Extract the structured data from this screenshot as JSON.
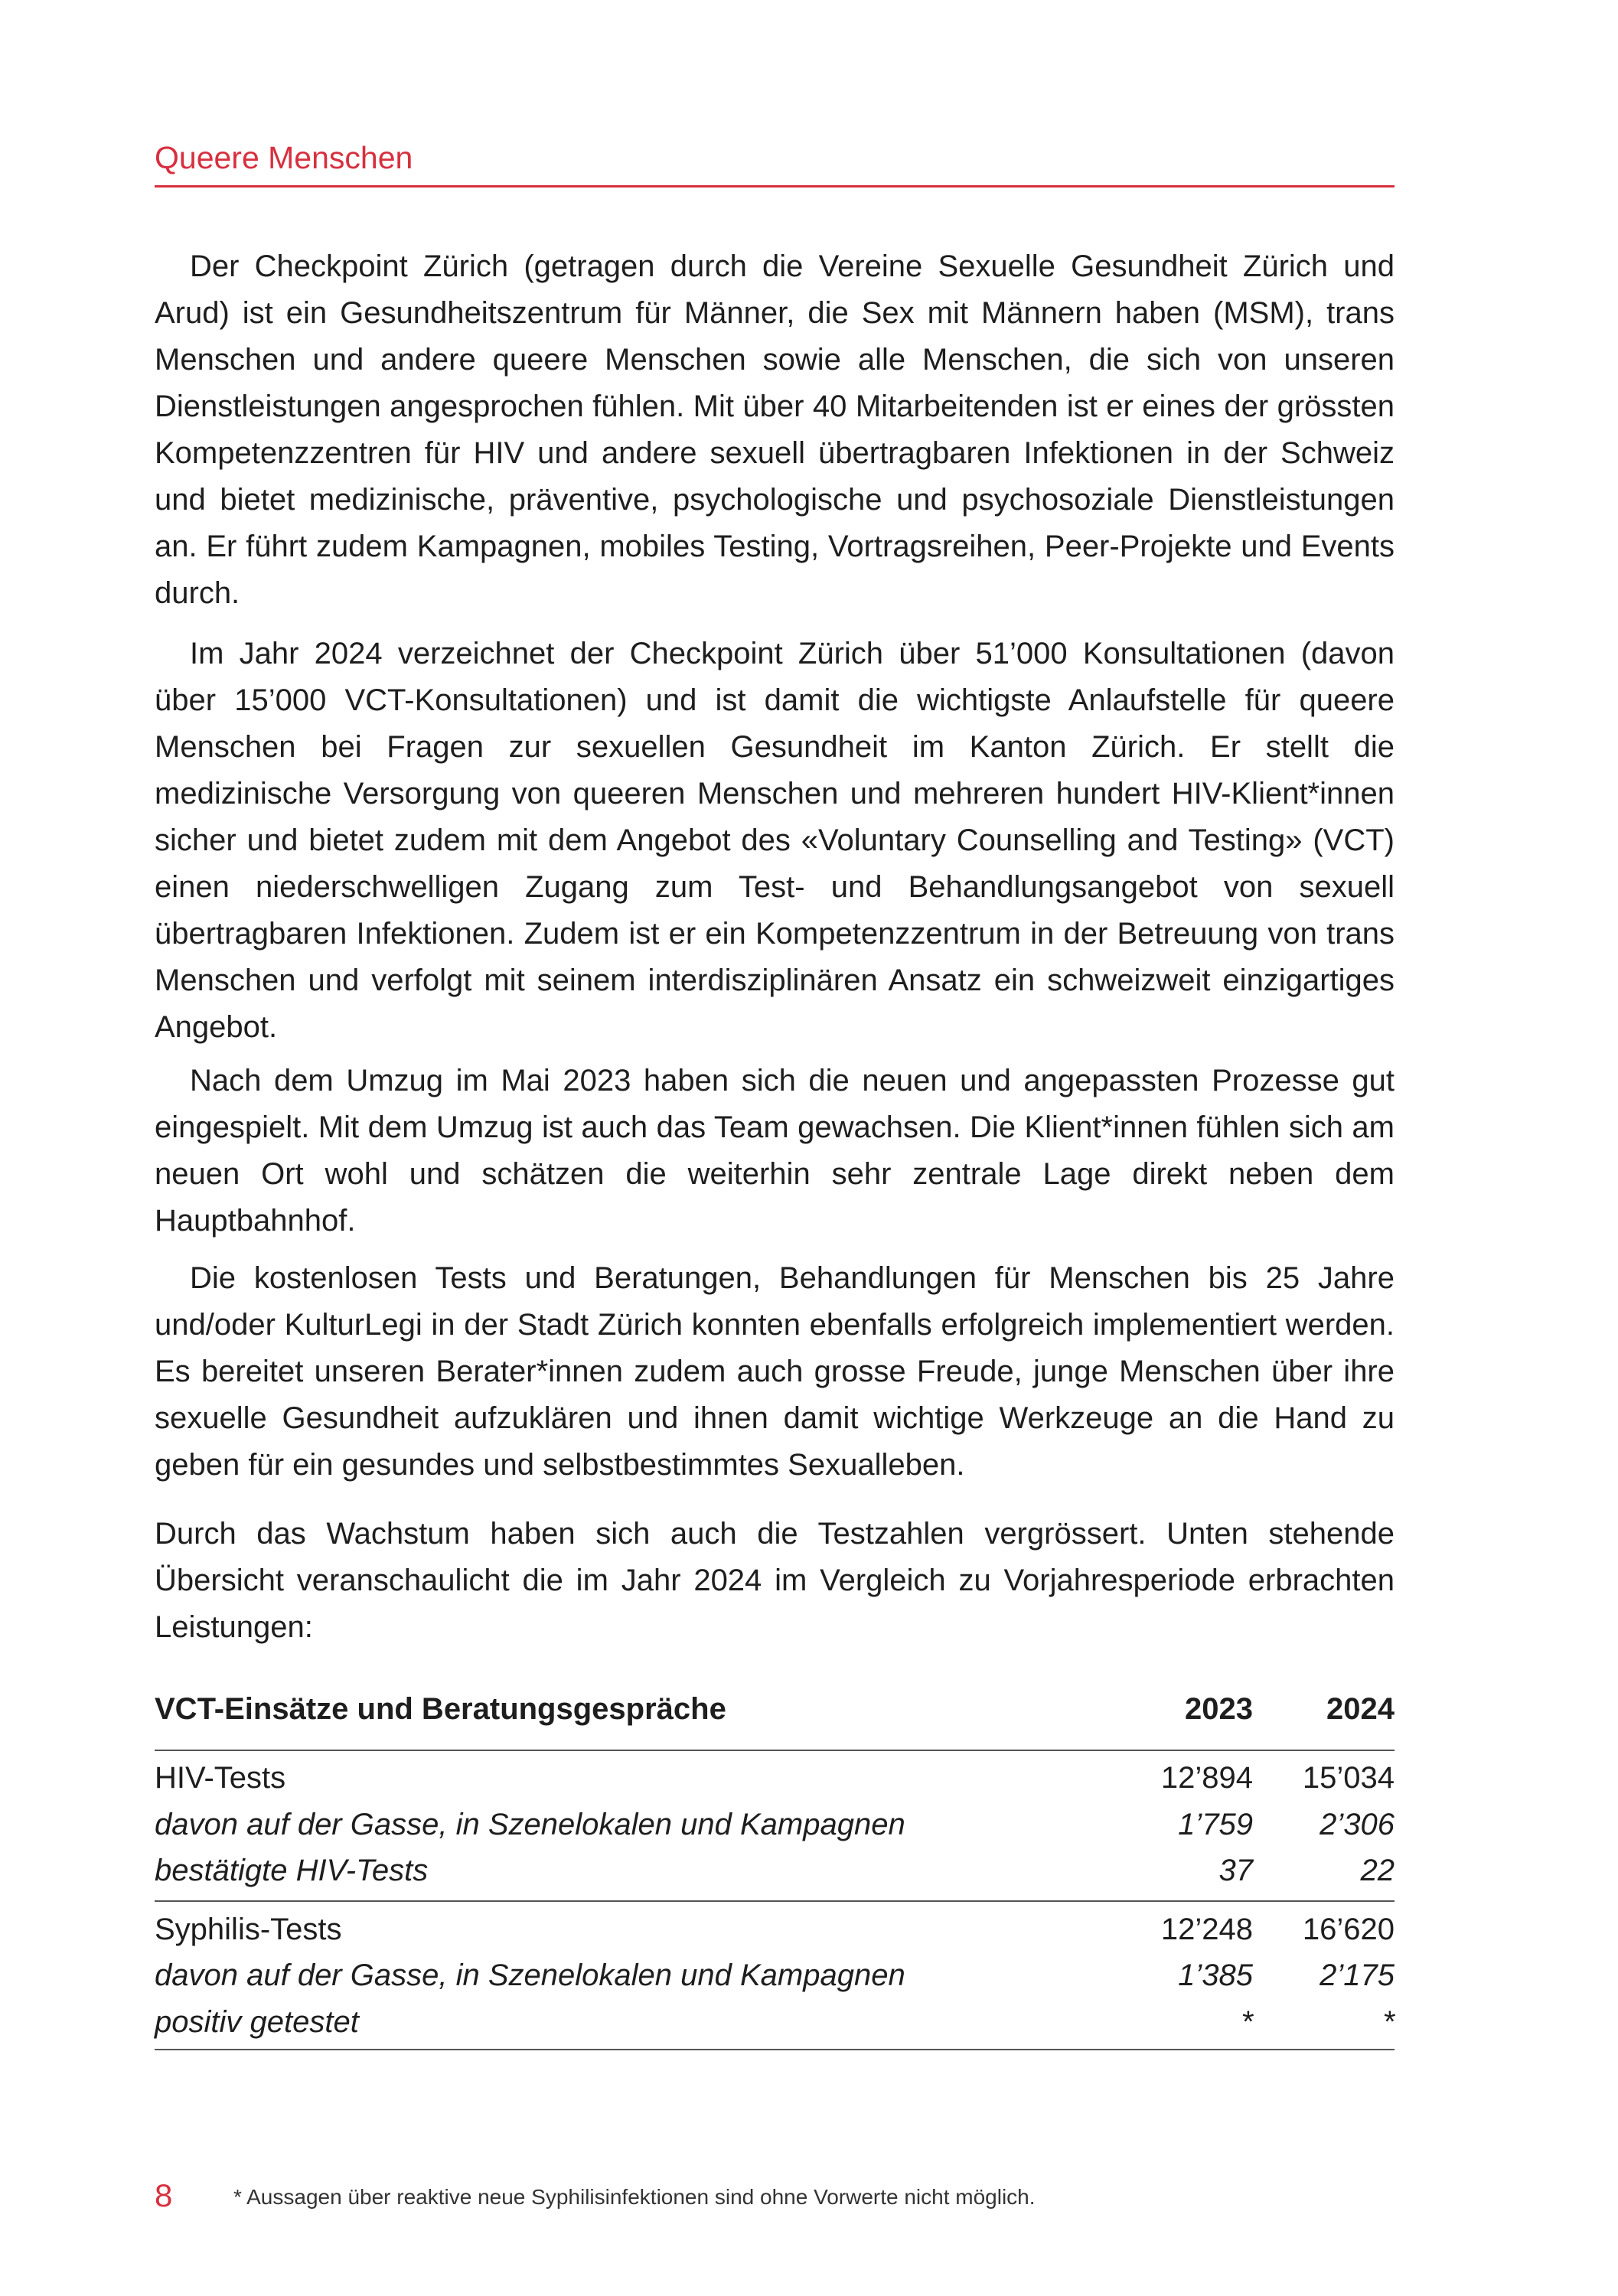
{
  "header": {
    "section_title": "Queere Menschen",
    "accent_color": "#d7303f"
  },
  "paragraphs": [
    "Der Checkpoint Zürich (getragen durch die Vereine Sexuelle Gesundheit Zürich und Arud) ist ein Gesundheitszentrum für Männer, die Sex mit Männern haben (MSM), trans Menschen und andere queere Menschen sowie alle Menschen, die sich von unseren Dienstleistungen angesprochen fühlen. Mit über 40 Mitarbeitenden ist er eines der grössten Kompetenzzentren für HIV und andere sexuell übertragbaren Infektionen in der Schweiz und bietet medizinische, präventive, psychologische und psychosoziale Dienstleistungen an. Er führt zudem Kampagnen, mobiles Testing, Vortragsreihen, Peer-Projekte und Events durch.",
    "Im Jahr 2024 verzeichnet der Checkpoint Zürich über 51’000 Konsultationen (davon über 15’000 VCT-Konsultationen) und ist damit die wichtigste Anlaufstelle für queere Menschen bei Fragen zur sexuellen Gesundheit im Kanton Zürich. Er stellt die medizinische Versorgung von queeren Menschen und mehreren hundert HIV-Klient*innen sicher und bietet zudem mit dem Angebot des «Voluntary Counselling and Testing» (VCT) einen niederschwelligen Zugang zum Test- und Behandlungsangebot von sexuell übertragbaren Infektionen. Zudem ist er ein Kompetenzzentrum in der Betreuung von trans Menschen und verfolgt mit seinem interdisziplinären Ansatz ein schweizweit einzigartiges Angebot.",
    "Nach dem Umzug im Mai 2023 haben sich die neuen und angepassten Prozesse gut eingespielt. Mit dem Umzug ist auch das Team gewachsen. Die Klient*innen fühlen sich am neuen Ort wohl und schätzen die weiterhin sehr zentrale Lage direkt neben dem Hauptbahnhof.",
    "Die kostenlosen Tests und Beratungen, Behandlungen für Menschen bis 25 Jahre und/oder KulturLegi in der Stadt Zürich konnten ebenfalls erfolgreich implementiert werden. Es bereitet unseren Berater*innen zudem auch grosse Freude, junge Menschen über ihre sexuelle Gesundheit aufzuklären und ihnen damit wichtige Werkzeuge an die Hand zu geben für ein gesundes und selbstbestimmtes Sexualleben.",
    "Durch das Wachstum haben sich auch die Testzahlen vergrössert. Unten stehende Übersicht veranschaulicht die im Jahr 2024 im Vergleich zu Vorjahresperiode erbrachten Leistungen:"
  ],
  "table": {
    "title": "VCT-Einsätze und Beratungsgespräche",
    "columns": [
      "2023",
      "2024"
    ],
    "rows": [
      {
        "label": "HIV-Tests",
        "v2023": "12’894",
        "v2024": "15’034",
        "style": "normal"
      },
      {
        "label": "davon auf der Gasse, in Szenelokalen und Kampagnen",
        "v2023": "1’759",
        "v2024": "2’306",
        "style": "italic"
      },
      {
        "label": "bestätigte HIV-Tests",
        "v2023": "37",
        "v2024": "22",
        "style": "italic"
      },
      {
        "label": "Syphilis-Tests",
        "v2023": "12’248",
        "v2024": "16’620",
        "style": "normal"
      },
      {
        "label": "davon auf der Gasse, in Szenelokalen und Kampagnen",
        "v2023": "1’385",
        "v2024": "2’175",
        "style": "italic"
      },
      {
        "label": "positiv getestet",
        "v2023": "*",
        "v2024": "*",
        "style": "italic"
      }
    ]
  },
  "footer": {
    "page_number": "8",
    "footnote": "* Aussagen über reaktive neue Syphilisinfektionen sind ohne Vorwerte nicht möglich."
  }
}
